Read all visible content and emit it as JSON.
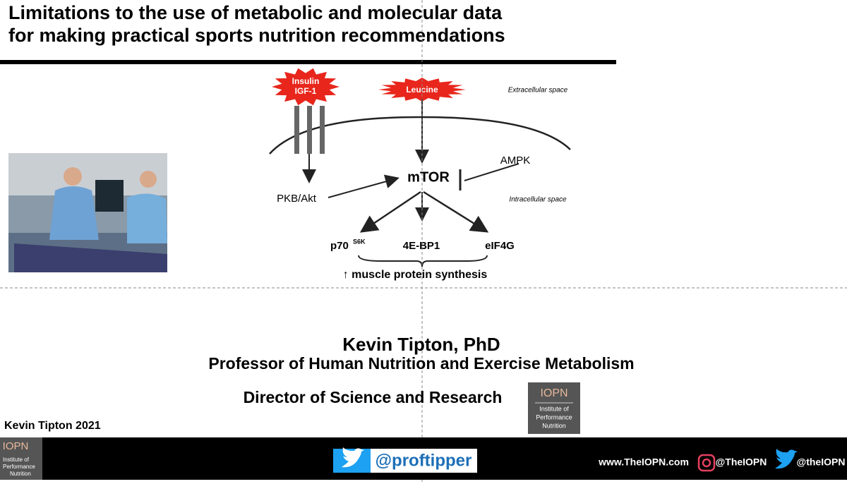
{
  "title": [
    "Limitations to the use of metabolic and molecular data",
    "for making practical sports nutrition recommendations"
  ],
  "diagram": {
    "insulin": "Insulin",
    "igf": "IGF-1",
    "leucine": "Leucine",
    "extracellular": "Extracellular space",
    "intracellular": "Intracellular space",
    "ampk": "AMPK",
    "mtor": "mTOR",
    "pkb": "PKB/Akt",
    "p70": "p70",
    "p70_sup": "S6K",
    "bp1": "4E-BP1",
    "eif": "eIF4G",
    "result": "↑ muscle protein synthesis"
  },
  "speaker": {
    "name": "Kevin Tipton, PhD",
    "title": "Professor of Human Nutrition and Exercise Metabolism",
    "role": "Director of Science and Research"
  },
  "credit": "Kevin Tipton 2021",
  "logo": {
    "abbr": "IOPN",
    "lines": [
      "Institute of",
      "Performance",
      "Nutrition"
    ]
  },
  "footer": {
    "handle": "@proftipper",
    "website": "www.TheIOPN.com",
    "instagram": "@TheIOPN",
    "twitter": "@theIOPN"
  }
}
